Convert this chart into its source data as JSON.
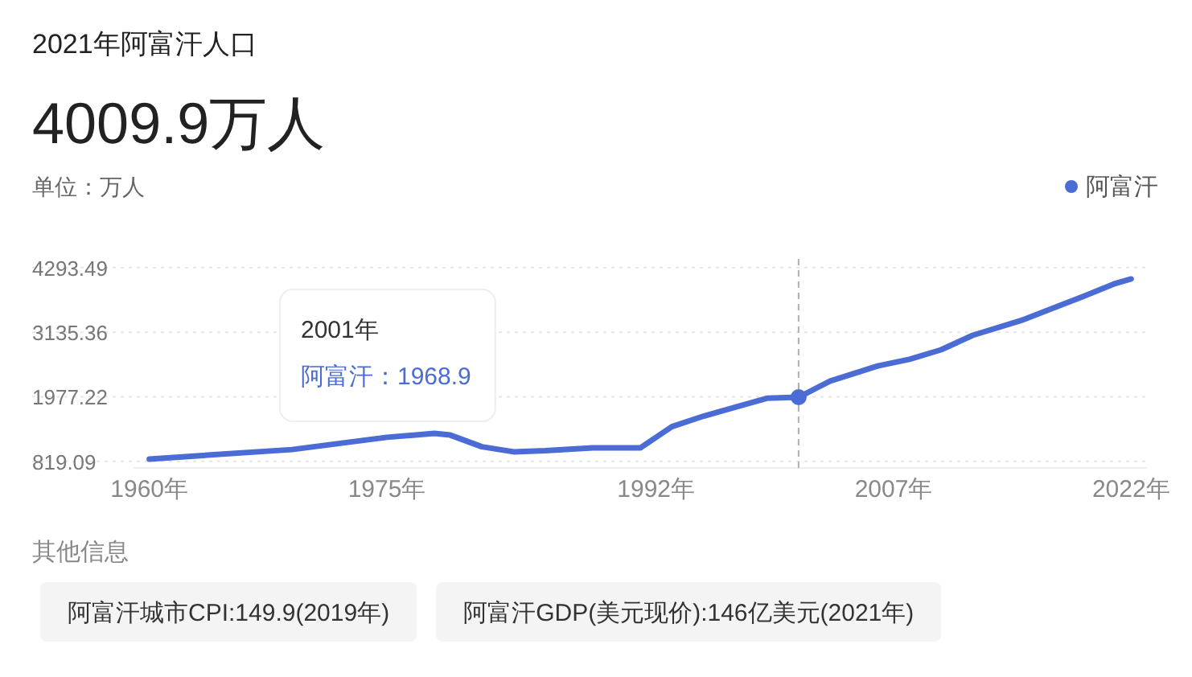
{
  "chart_data": {
    "type": "line",
    "title": "2021年阿富汗人口",
    "subtitle": "4009.9万人",
    "ylabel": "单位：万人",
    "x": [
      1960,
      1969,
      1975,
      1978,
      1979,
      1981,
      1983,
      1985,
      1988,
      1991,
      1993,
      1995,
      1998,
      1999,
      2001,
      2003,
      2006,
      2008,
      2010,
      2012,
      2015,
      2017,
      2019,
      2021,
      2022
    ],
    "series": [
      {
        "name": "阿富汗",
        "color": "#4a6cd4",
        "values": [
          860,
          1030,
          1250,
          1320,
          1290,
          1080,
          990,
          1010,
          1060,
          1060,
          1440,
          1630,
          1870,
          1950,
          1968.9,
          2260,
          2530,
          2650,
          2820,
          3080,
          3340,
          3560,
          3780,
          4009.9,
          4090
        ]
      }
    ],
    "xlim": [
      1959,
      2023
    ],
    "ylim": [
      700,
      4450
    ],
    "xticks": [
      {
        "value": 1960,
        "label": "1960年"
      },
      {
        "value": 1975,
        "label": "1975年"
      },
      {
        "value": 1992,
        "label": "1992年"
      },
      {
        "value": 2007,
        "label": "2007年"
      },
      {
        "value": 2022,
        "label": "2022年"
      }
    ],
    "yticks": [
      819.09,
      1977.22,
      3135.36,
      4293.49
    ],
    "grid": "y",
    "legend": "top right",
    "ref_lines": [
      {
        "axis": "x",
        "value": 2001,
        "color": "#b0b0b0",
        "line_style": "dashed"
      }
    ],
    "annotations": [
      "2001年",
      "阿富汗：1968.9",
      "其他信息",
      "阿富汗城市CPI:149.9(2019年)",
      "阿富汗GDP(美元现价):146亿美元(2021年)"
    ]
  }
}
